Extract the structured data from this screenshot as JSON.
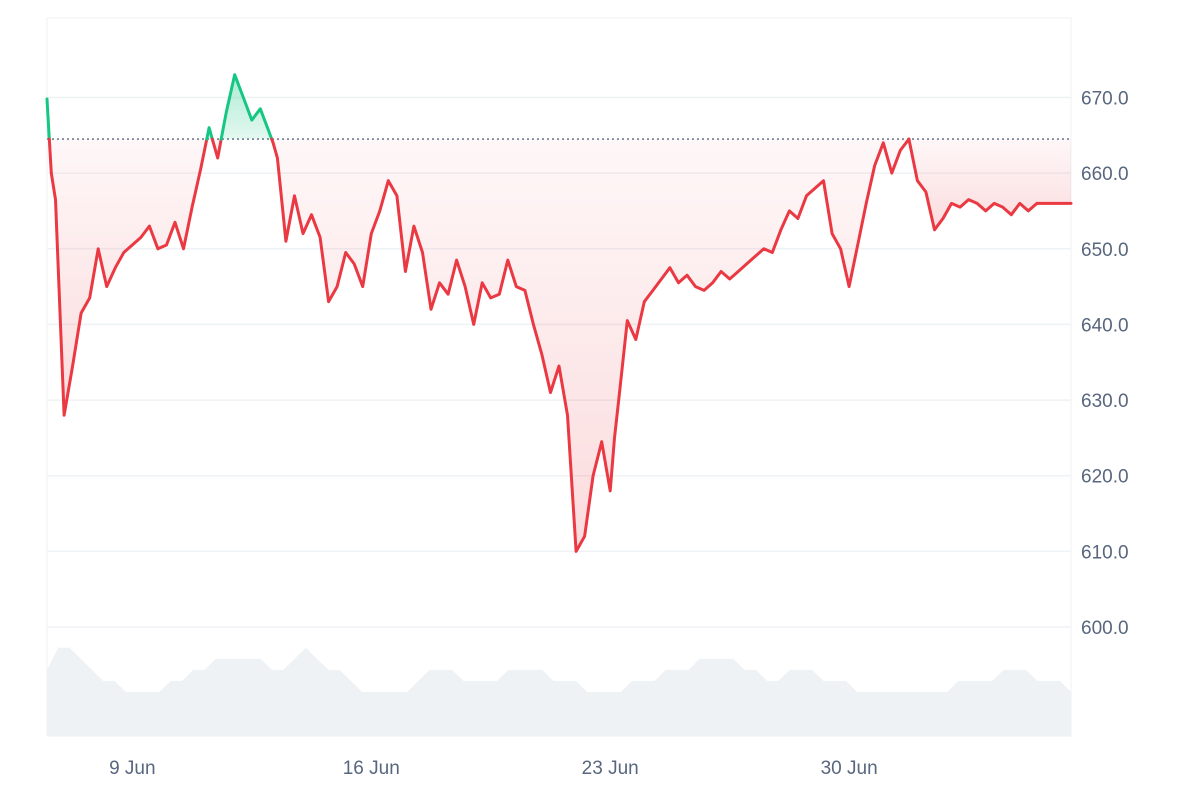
{
  "colors": {
    "up_line": "#16c784",
    "down_line": "#ea3943",
    "up_fill": "#16c784",
    "down_fill": "#ea3943",
    "baseline": "#58667e",
    "grid": "#eff2f5",
    "volume": "#eff2f5",
    "axis_text": "#58667e"
  },
  "chart_data": {
    "type": "area",
    "title": "",
    "xlabel": "",
    "ylabel": "",
    "ylim": [
      585.6,
      680.5
    ],
    "y_ticks": [
      600.0,
      610.0,
      620.0,
      630.0,
      640.0,
      650.0,
      660.0,
      670.0
    ],
    "y_tick_labels": [
      "600.0",
      "610.0",
      "620.0",
      "630.0",
      "640.0",
      "650.0",
      "660.0",
      "670.0"
    ],
    "x_ticks": [
      "2025-06-09",
      "2025-06-16",
      "2025-06-23",
      "2025-06-30"
    ],
    "x_tick_labels": [
      "9 Jun",
      "16 Jun",
      "23 Jun",
      "30 Jun"
    ],
    "xlim": [
      "2025-06-06 12:00",
      "2025-07-06 12:00"
    ],
    "baseline": 664.5,
    "grid": true,
    "legend": "none",
    "series": [
      {
        "x": [
          "2025-06-06 12:00",
          "2025-06-06 15:00",
          "2025-06-06 18:00",
          "2025-06-07 00:00",
          "2025-06-07 06:00",
          "2025-06-07 12:00",
          "2025-06-07 18:00",
          "2025-06-08 00:00",
          "2025-06-08 06:00",
          "2025-06-08 12:00",
          "2025-06-08 18:00",
          "2025-06-09 00:00",
          "2025-06-09 06:00",
          "2025-06-09 12:00",
          "2025-06-09 18:00",
          "2025-06-10 00:00",
          "2025-06-10 06:00",
          "2025-06-10 12:00",
          "2025-06-10 18:00",
          "2025-06-11 00:00",
          "2025-06-11 06:00",
          "2025-06-11 12:00",
          "2025-06-11 18:00",
          "2025-06-12 00:00",
          "2025-06-12 06:00",
          "2025-06-12 12:00",
          "2025-06-12 18:00",
          "2025-06-13 00:00",
          "2025-06-13 03:00",
          "2025-06-13 06:00",
          "2025-06-13 12:00",
          "2025-06-13 18:00",
          "2025-06-14 00:00",
          "2025-06-14 06:00",
          "2025-06-14 12:00",
          "2025-06-14 18:00",
          "2025-06-15 00:00",
          "2025-06-15 06:00",
          "2025-06-15 12:00",
          "2025-06-15 18:00",
          "2025-06-16 00:00",
          "2025-06-16 06:00",
          "2025-06-16 12:00",
          "2025-06-16 18:00",
          "2025-06-17 00:00",
          "2025-06-17 06:00",
          "2025-06-17 12:00",
          "2025-06-17 18:00",
          "2025-06-18 00:00",
          "2025-06-18 06:00",
          "2025-06-18 12:00",
          "2025-06-18 18:00",
          "2025-06-19 00:00",
          "2025-06-19 06:00",
          "2025-06-19 12:00",
          "2025-06-19 18:00",
          "2025-06-20 00:00",
          "2025-06-20 06:00",
          "2025-06-20 12:00",
          "2025-06-20 18:00",
          "2025-06-21 00:00",
          "2025-06-21 06:00",
          "2025-06-21 12:00",
          "2025-06-21 18:00",
          "2025-06-22 00:00",
          "2025-06-22 06:00",
          "2025-06-22 12:00",
          "2025-06-22 18:00",
          "2025-06-23 00:00",
          "2025-06-23 03:00",
          "2025-06-23 06:00",
          "2025-06-23 12:00",
          "2025-06-23 18:00",
          "2025-06-24 00:00",
          "2025-06-24 06:00",
          "2025-06-24 12:00",
          "2025-06-24 18:00",
          "2025-06-25 00:00",
          "2025-06-25 06:00",
          "2025-06-25 12:00",
          "2025-06-25 18:00",
          "2025-06-26 00:00",
          "2025-06-26 06:00",
          "2025-06-26 12:00",
          "2025-06-26 18:00",
          "2025-06-27 00:00",
          "2025-06-27 06:00",
          "2025-06-27 12:00",
          "2025-06-27 18:00",
          "2025-06-28 00:00",
          "2025-06-28 06:00",
          "2025-06-28 12:00",
          "2025-06-28 18:00",
          "2025-06-29 00:00",
          "2025-06-29 06:00",
          "2025-06-29 12:00",
          "2025-06-29 18:00",
          "2025-06-30 00:00",
          "2025-06-30 06:00",
          "2025-06-30 12:00",
          "2025-06-30 18:00",
          "2025-07-01 00:00",
          "2025-07-01 06:00",
          "2025-07-01 12:00",
          "2025-07-01 18:00",
          "2025-07-02 00:00",
          "2025-07-02 06:00",
          "2025-07-02 12:00",
          "2025-07-02 18:00",
          "2025-07-03 00:00",
          "2025-07-03 06:00",
          "2025-07-03 12:00",
          "2025-07-03 18:00",
          "2025-07-04 00:00",
          "2025-07-04 06:00",
          "2025-07-04 12:00",
          "2025-07-04 18:00",
          "2025-07-05 00:00",
          "2025-07-05 06:00",
          "2025-07-05 12:00",
          "2025-07-05 18:00",
          "2025-07-06 00:00",
          "2025-07-06 06:00",
          "2025-07-06 12:00"
        ],
        "values": [
          669.8,
          660.0,
          656.5,
          628.0,
          634.5,
          641.5,
          643.5,
          650.0,
          645.0,
          647.5,
          649.5,
          650.5,
          651.5,
          653.0,
          650.0,
          650.5,
          653.5,
          650.0,
          655.5,
          660.5,
          666.0,
          662.0,
          668.0,
          673.0,
          670.0,
          667.0,
          668.5,
          665.5,
          664.0,
          662.0,
          651.0,
          657.0,
          652.0,
          654.5,
          651.5,
          643.0,
          645.0,
          649.5,
          648.0,
          645.0,
          652.0,
          655.0,
          659.0,
          657.0,
          647.0,
          653.0,
          649.5,
          642.0,
          645.5,
          644.0,
          648.5,
          645.0,
          640.0,
          645.5,
          643.5,
          644.0,
          648.5,
          645.0,
          644.5,
          640.0,
          636.0,
          631.0,
          634.5,
          628.0,
          610.0,
          612.0,
          620.0,
          624.5,
          618.0,
          625.0,
          630.0,
          640.5,
          638.0,
          643.0,
          644.5,
          646.0,
          647.5,
          645.5,
          646.5,
          645.0,
          644.5,
          645.5,
          647.0,
          646.0,
          647.0,
          648.0,
          649.0,
          650.0,
          649.5,
          652.5,
          655.0,
          654.0,
          657.0,
          658.0,
          659.0,
          652.0,
          650.0,
          645.0,
          650.5,
          656.0,
          661.0,
          664.0,
          660.0,
          663.0,
          664.5,
          659.0,
          657.5,
          652.5,
          654.0,
          656.0,
          655.5,
          656.5,
          656.0,
          655.0,
          656.0,
          655.5,
          654.5,
          656.0,
          655.0,
          656.0,
          656.0,
          656.0,
          656.0,
          656.0
        ]
      }
    ],
    "volume": {
      "values": [
        596,
        598,
        598,
        597,
        596,
        595,
        595,
        594,
        594,
        594,
        594,
        595,
        595,
        596,
        596,
        597,
        597,
        597,
        597,
        597,
        596,
        596,
        597,
        598,
        597,
        596,
        596,
        595,
        594,
        594,
        594,
        594,
        594,
        595,
        596,
        596,
        596,
        595,
        595,
        595,
        595,
        596,
        596,
        596,
        596,
        595,
        595,
        595,
        594,
        594,
        594,
        594,
        595,
        595,
        595,
        596,
        596,
        596,
        597,
        597,
        597,
        597,
        596,
        596,
        595,
        595,
        596,
        596,
        596,
        595,
        595,
        595,
        594,
        594,
        594,
        594,
        594,
        594,
        594,
        594,
        594,
        595,
        595,
        595,
        595,
        596,
        596,
        596,
        595,
        595,
        595,
        594
      ]
    }
  }
}
